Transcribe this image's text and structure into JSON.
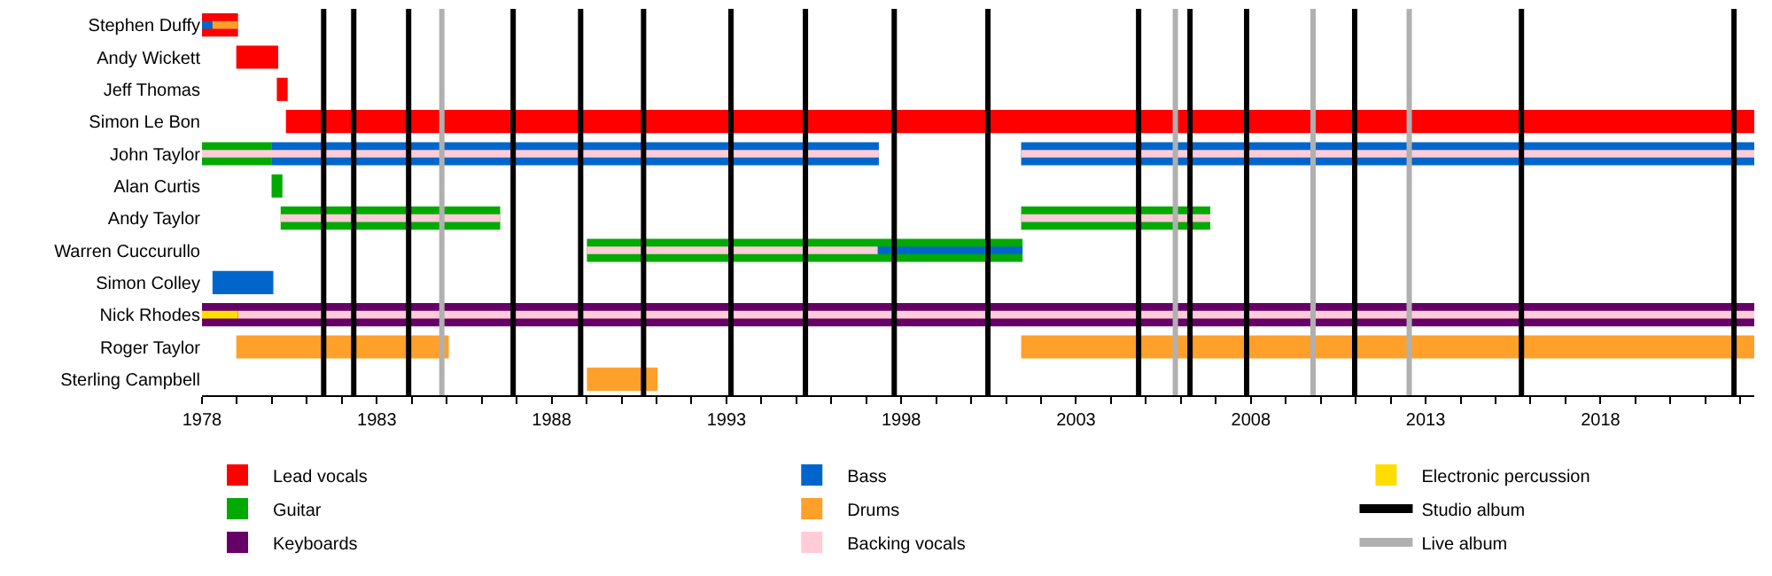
{
  "chart_data": {
    "type": "bar",
    "orientation": "horizontal",
    "categories": [
      "Stephen Duffy",
      "Andy Wickett",
      "Jeff Thomas",
      "Simon Le Bon",
      "John Taylor",
      "Alan Curtis",
      "Andy Taylor",
      "Warren Cuccurullo",
      "Simon Colley",
      "Nick Rhodes",
      "Roger Taylor",
      "Sterling Campbell"
    ],
    "series": [
      {
        "name": "Lead vocals",
        "color": "#ff0000",
        "base": [
          1978,
          1978.98,
          1980.14,
          1980.4,
          null,
          null,
          null,
          null,
          null,
          null,
          null,
          null
        ],
        "values": [
          1.03,
          1.2,
          0.31,
          42.0,
          null,
          null,
          null,
          null,
          null,
          null,
          null,
          null
        ]
      },
      {
        "name": "Guitar",
        "color": "#00aa00",
        "base": [
          null,
          null,
          null,
          null,
          1978,
          1979.99,
          1980.25,
          1989.01,
          null,
          null,
          null,
          null
        ],
        "values": [
          null,
          null,
          null,
          null,
          2.0,
          0.31,
          6.28,
          12.46,
          null,
          null,
          null,
          null
        ]
      },
      {
        "color": "#00aa00",
        "base": [
          null,
          null,
          null,
          null,
          null,
          null,
          2001.43,
          null,
          null,
          null,
          null,
          null
        ],
        "values": [
          null,
          null,
          null,
          null,
          null,
          null,
          5.41,
          null,
          null,
          null,
          null,
          null
        ]
      },
      {
        "name": "Keyboards",
        "color": "#660066",
        "base": [
          null,
          null,
          null,
          null,
          null,
          null,
          null,
          null,
          null,
          1978,
          null,
          null
        ],
        "values": [
          null,
          null,
          null,
          null,
          null,
          null,
          null,
          null,
          null,
          44.4,
          null,
          null
        ]
      },
      {
        "name": "Bass",
        "color": "#0066cc",
        "base": [
          null,
          null,
          null,
          null,
          1980.0,
          null,
          null,
          null,
          1978.3,
          null,
          null,
          null
        ],
        "values": [
          null,
          null,
          null,
          null,
          17.36,
          null,
          null,
          null,
          1.74,
          null,
          null,
          null
        ]
      },
      {
        "color": "#0066cc",
        "base": [
          null,
          null,
          null,
          null,
          2001.43,
          null,
          null,
          null,
          null,
          null,
          null,
          null
        ],
        "values": [
          null,
          null,
          null,
          null,
          20.97,
          null,
          null,
          null,
          null,
          null,
          null,
          null
        ]
      },
      {
        "name": "Drums",
        "color": "#ffa02a",
        "base": [
          null,
          null,
          null,
          null,
          null,
          null,
          null,
          null,
          null,
          null,
          1978.98,
          1989.01
        ],
        "values": [
          null,
          null,
          null,
          null,
          null,
          null,
          null,
          null,
          null,
          null,
          6.08,
          2.02
        ]
      },
      {
        "color": "#ffa02a",
        "base": [
          null,
          null,
          null,
          null,
          null,
          null,
          null,
          null,
          null,
          null,
          2001.43,
          null
        ],
        "values": [
          null,
          null,
          null,
          null,
          null,
          null,
          null,
          null,
          null,
          null,
          20.97,
          null
        ]
      },
      {
        "name": "Backing vocals",
        "color": "#ffccd8",
        "base": [
          null,
          null,
          null,
          null,
          1978,
          null,
          1980.25,
          1989.01,
          null,
          1979.03,
          null,
          null
        ],
        "values": [
          null,
          null,
          null,
          null,
          19.36,
          null,
          6.28,
          8.32,
          null,
          43.37,
          null,
          null
        ]
      },
      {
        "color": "#ffccd8",
        "base": [
          null,
          null,
          null,
          null,
          2001.43,
          null,
          2001.43,
          null,
          null,
          null,
          null,
          null
        ],
        "values": [
          null,
          null,
          null,
          null,
          20.97,
          null,
          5.41,
          null,
          null,
          null,
          null,
          null
        ]
      },
      {
        "color": "#0066cc",
        "base": [
          1978,
          null,
          null,
          null,
          null,
          null,
          null,
          1997.33,
          null,
          null,
          null,
          null
        ],
        "values": [
          0.3,
          null,
          null,
          null,
          null,
          null,
          null,
          4.14,
          null,
          null,
          null,
          null
        ]
      },
      {
        "color": "#ffa02a",
        "base": [
          1978.3,
          null,
          null,
          null,
          null,
          null,
          null,
          null,
          null,
          null,
          null,
          null
        ],
        "values": [
          0.73,
          null,
          null,
          null,
          null,
          null,
          null,
          null,
          null,
          null,
          null,
          null
        ]
      },
      {
        "name": "Electronic percussion",
        "color": "#ffdd00",
        "base": [
          null,
          null,
          null,
          null,
          null,
          null,
          null,
          null,
          null,
          1978,
          null,
          null
        ],
        "values": [
          null,
          null,
          null,
          null,
          null,
          null,
          null,
          null,
          null,
          1.03,
          null,
          null
        ]
      }
    ],
    "ref_lines": [
      {
        "axis": "x",
        "value": 1981.48,
        "label": "Studio album",
        "color": "#000000"
      },
      {
        "axis": "x",
        "value": 1982.34,
        "color": "#000000"
      },
      {
        "axis": "x",
        "value": 1983.91,
        "color": "#000000"
      },
      {
        "axis": "x",
        "value": 1986.9,
        "color": "#000000"
      },
      {
        "axis": "x",
        "value": 1988.83,
        "color": "#000000"
      },
      {
        "axis": "x",
        "value": 1990.63,
        "color": "#000000"
      },
      {
        "axis": "x",
        "value": 1993.13,
        "color": "#000000"
      },
      {
        "axis": "x",
        "value": 1995.26,
        "color": "#000000"
      },
      {
        "axis": "x",
        "value": 1997.8,
        "color": "#000000"
      },
      {
        "axis": "x",
        "value": 2000.48,
        "color": "#000000"
      },
      {
        "axis": "x",
        "value": 2004.79,
        "color": "#000000"
      },
      {
        "axis": "x",
        "value": 2006.26,
        "color": "#000000"
      },
      {
        "axis": "x",
        "value": 2007.88,
        "color": "#000000"
      },
      {
        "axis": "x",
        "value": 2010.97,
        "color": "#000000"
      },
      {
        "axis": "x",
        "value": 2015.74,
        "color": "#000000"
      },
      {
        "axis": "x",
        "value": 2021.82,
        "color": "#000000"
      },
      {
        "axis": "x",
        "value": 1984.86,
        "label": "Live album",
        "color": "#b0b0b0"
      },
      {
        "axis": "x",
        "value": 2005.84,
        "color": "#b0b0b0"
      },
      {
        "axis": "x",
        "value": 2009.78,
        "color": "#b0b0b0"
      },
      {
        "axis": "x",
        "value": 2012.53,
        "color": "#b0b0b0"
      }
    ],
    "xlim": [
      1978,
      2022.4
    ],
    "xticks": [
      1978,
      {
        "value": 1979,
        "label": null
      },
      {
        "value": 1980,
        "label": null
      },
      {
        "value": 1981,
        "label": null
      },
      {
        "value": 1982,
        "label": null
      },
      1983,
      {
        "value": 1984,
        "label": null
      },
      {
        "value": 1985,
        "label": null
      },
      {
        "value": 1986,
        "label": null
      },
      {
        "value": 1987,
        "label": null
      },
      1988,
      {
        "value": 1989,
        "label": null
      },
      {
        "value": 1990,
        "label": null
      },
      {
        "value": 1991,
        "label": null
      },
      {
        "value": 1992,
        "label": null
      },
      1993,
      {
        "value": 1994,
        "label": null
      },
      {
        "value": 1995,
        "label": null
      },
      {
        "value": 1996,
        "label": null
      },
      {
        "value": 1997,
        "label": null
      },
      1998,
      {
        "value": 1999,
        "label": null
      },
      {
        "value": 2000,
        "label": null
      },
      {
        "value": 2001,
        "label": null
      },
      {
        "value": 2002,
        "label": null
      },
      2003,
      {
        "value": 2004,
        "label": null
      },
      {
        "value": 2005,
        "label": null
      },
      {
        "value": 2006,
        "label": null
      },
      {
        "value": 2007,
        "label": null
      },
      2008,
      {
        "value": 2009,
        "label": null
      },
      {
        "value": 2010,
        "label": null
      },
      {
        "value": 2011,
        "label": null
      },
      {
        "value": 2012,
        "label": null
      },
      2013,
      {
        "value": 2014,
        "label": null
      },
      {
        "value": 2015,
        "label": null
      },
      {
        "value": 2016,
        "label": null
      },
      {
        "value": 2017,
        "label": null
      },
      2018,
      {
        "value": 2019,
        "label": null
      },
      {
        "value": 2020,
        "label": null
      },
      {
        "value": 2021,
        "label": null
      },
      {
        "value": 2022,
        "label": null
      }
    ],
    "legend": "bottom"
  }
}
